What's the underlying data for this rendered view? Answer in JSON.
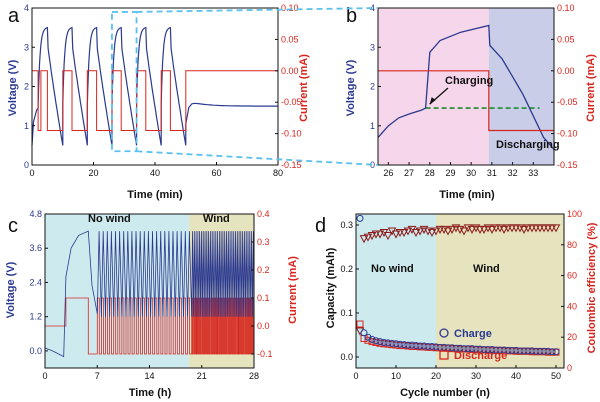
{
  "colors": {
    "voltage": "#2b3990",
    "current": "#d7261e",
    "zoom": "#5bc0eb",
    "charging_bg": "#f6d6ea",
    "discharging_bg": "#c9cde8",
    "nowind_bg": "#cdebee",
    "wind_bg": "#e6e4bf",
    "dashed": "#1e8c32"
  },
  "chart_data": [
    {
      "panel": "a",
      "type": "line",
      "xlabel": "Time (min)",
      "ylabel": "Voltage (V)",
      "y2label": "Current (mA)",
      "xlim": [
        0,
        80
      ],
      "ylim": [
        0,
        4
      ],
      "y2lim": [
        -0.15,
        0.1
      ],
      "xticks": [
        0,
        20,
        40,
        60,
        80
      ],
      "yticks": [
        0,
        1,
        2,
        3,
        4
      ],
      "y2ticks": [
        "0.10",
        "0.05",
        "0.00",
        "-0.05",
        "-0.10",
        "-0.15"
      ],
      "y2tick_values": [
        0.1,
        0.05,
        0.0,
        -0.05,
        -0.1,
        -0.15
      ],
      "series": [
        {
          "axis": "left",
          "values_note": "",
          "cycle_period_min": 8,
          "cycle_count": 6,
          "peak_v": 3.5,
          "min_v": 0.5,
          "rest_v": 1.5
        },
        {
          "axis": "right",
          "high": 0.0,
          "low": -0.095
        }
      ]
    },
    {
      "panel": "b",
      "type": "line",
      "xlabel": "Time (min)",
      "ylabel": "Voltage (V)",
      "y2label": "Current (mA)",
      "xlim": [
        25.5,
        34
      ],
      "ylim": [
        0,
        4
      ],
      "y2lim": [
        -0.15,
        0.1
      ],
      "xticks": [
        26,
        27,
        28,
        29,
        30,
        31,
        32,
        33
      ],
      "yticks": [
        0,
        1,
        2,
        3,
        4
      ],
      "y2ticks": [
        "0.10",
        "0.05",
        "0.00",
        "-0.05",
        "-0.10",
        "-0.15"
      ],
      "y2tick_values": [
        0.1,
        0.05,
        0.0,
        -0.05,
        -0.1,
        -0.15
      ],
      "annotations": [
        "Charging",
        "Discharging"
      ],
      "charging_region": [
        25.5,
        30.85
      ],
      "discharging_region": [
        30.85,
        34
      ],
      "voltage_points": [
        [
          25.5,
          0.7
        ],
        [
          26,
          1.0
        ],
        [
          26.5,
          1.2
        ],
        [
          27,
          1.3
        ],
        [
          27.6,
          1.4
        ],
        [
          27.8,
          1.45
        ],
        [
          28.0,
          2.9
        ],
        [
          28.5,
          3.2
        ],
        [
          29.5,
          3.4
        ],
        [
          30.85,
          3.55
        ],
        [
          30.9,
          3.05
        ],
        [
          31.5,
          2.7
        ],
        [
          32.5,
          1.8
        ],
        [
          33.5,
          0.7
        ],
        [
          34,
          0.4
        ]
      ],
      "current_points": [
        [
          25.5,
          0.0
        ],
        [
          30.85,
          0.0
        ],
        [
          30.85,
          -0.095
        ],
        [
          34,
          -0.095
        ]
      ],
      "dashed_level_v": 1.45
    },
    {
      "panel": "c",
      "type": "line",
      "xlabel": "Time (h)",
      "ylabel": "Voltage (V)",
      "y2label": "Current (mA)",
      "xlim": [
        0,
        28
      ],
      "ylim": [
        -0.6,
        4.8
      ],
      "y2lim": [
        -0.15,
        0.4
      ],
      "xticks": [
        0,
        7,
        14,
        21,
        28
      ],
      "yticks": [
        "0.0",
        "1.2",
        "2.4",
        "3.6",
        "4.8"
      ],
      "ytick_values": [
        0.0,
        1.2,
        2.4,
        3.6,
        4.8
      ],
      "y2ticks": [
        "-0.1",
        "0.0",
        "0.1",
        "0.2",
        "0.3",
        "0.4"
      ],
      "y2tick_values": [
        -0.1,
        0.0,
        0.1,
        0.2,
        0.3,
        0.4
      ],
      "regions": [
        {
          "label": "No wind",
          "from": 0,
          "to": 19.3
        },
        {
          "label": "Wind",
          "from": 19.3,
          "to": 28
        }
      ],
      "voltage_high": 4.2,
      "voltage_low": 1.1
    },
    {
      "panel": "d",
      "type": "scatter",
      "xlabel": "Cycle number (n)",
      "ylabel": "Capacity (mAh)",
      "y2label": "Coulombic efficiency (%)",
      "xlim": [
        0,
        52
      ],
      "ylim": [
        -0.025,
        0.325
      ],
      "y2lim": [
        0,
        100
      ],
      "xticks": [
        0,
        10,
        20,
        30,
        40,
        50
      ],
      "yticks": [
        "0.0",
        "0.1",
        "0.2",
        "0.3"
      ],
      "ytick_values": [
        0.0,
        0.1,
        0.2,
        0.3
      ],
      "y2ticks": [
        0,
        20,
        40,
        60,
        80,
        100
      ],
      "regions": [
        {
          "label": "No wind",
          "from": 0,
          "to": 20
        },
        {
          "label": "Wind",
          "from": 20,
          "to": 52
        }
      ],
      "series": [
        {
          "name": "Charge",
          "marker": "circle",
          "x": [
            1,
            2,
            3,
            4,
            5,
            6,
            7,
            8,
            9,
            10,
            11,
            12,
            13,
            14,
            15,
            16,
            17,
            18,
            19,
            20,
            21,
            22,
            23,
            24,
            25,
            26,
            27,
            28,
            29,
            30,
            31,
            32,
            33,
            34,
            35,
            36,
            37,
            38,
            39,
            40,
            41,
            42,
            43,
            44,
            45,
            46,
            47,
            48,
            49,
            50
          ],
          "values": [
            0.315,
            0.055,
            0.045,
            0.04,
            0.037,
            0.035,
            0.033,
            0.032,
            0.031,
            0.03,
            0.029,
            0.028,
            0.027,
            0.027,
            0.026,
            0.025,
            0.025,
            0.024,
            0.024,
            0.023,
            0.022,
            0.022,
            0.021,
            0.021,
            0.02,
            0.02,
            0.019,
            0.019,
            0.019,
            0.018,
            0.018,
            0.017,
            0.017,
            0.017,
            0.016,
            0.016,
            0.016,
            0.015,
            0.015,
            0.015,
            0.014,
            0.014,
            0.014,
            0.014,
            0.013,
            0.013,
            0.013,
            0.013,
            0.012,
            0.012
          ]
        },
        {
          "name": "Discharge",
          "marker": "square",
          "x": [
            1,
            2,
            3,
            4,
            5,
            6,
            7,
            8,
            9,
            10,
            11,
            12,
            13,
            14,
            15,
            16,
            17,
            18,
            19,
            20,
            21,
            22,
            23,
            24,
            25,
            26,
            27,
            28,
            29,
            30,
            31,
            32,
            33,
            34,
            35,
            36,
            37,
            38,
            39,
            40,
            41,
            42,
            43,
            44,
            45,
            46,
            47,
            48,
            49,
            50
          ],
          "values": [
            0.075,
            0.042,
            0.038,
            0.035,
            0.033,
            0.031,
            0.03,
            0.029,
            0.028,
            0.027,
            0.026,
            0.026,
            0.025,
            0.024,
            0.024,
            0.023,
            0.023,
            0.022,
            0.022,
            0.021,
            0.021,
            0.02,
            0.02,
            0.019,
            0.019,
            0.018,
            0.018,
            0.018,
            0.017,
            0.017,
            0.016,
            0.016,
            0.016,
            0.015,
            0.015,
            0.015,
            0.014,
            0.014,
            0.014,
            0.013,
            0.013,
            0.013,
            0.013,
            0.012,
            0.012,
            0.012,
            0.012,
            0.011,
            0.011,
            0.011
          ]
        },
        {
          "name": "",
          "axis": "right",
          "marker": "triangle-down",
          "x": [
            1,
            2,
            3,
            4,
            5,
            6,
            7,
            8,
            9,
            10,
            11,
            12,
            13,
            14,
            15,
            16,
            17,
            18,
            19,
            20,
            21,
            22,
            23,
            24,
            25,
            26,
            27,
            28,
            29,
            30,
            31,
            32,
            33,
            34,
            35,
            36,
            37,
            38,
            39,
            40,
            41,
            42,
            43,
            44,
            45,
            46,
            47,
            48,
            49,
            50
          ],
          "values": [
            24,
            84,
            85,
            86,
            87,
            87,
            88,
            86,
            89,
            87,
            88,
            88,
            89,
            90,
            88,
            89,
            90,
            89,
            88,
            89,
            90,
            90,
            89,
            90,
            91,
            90,
            89,
            91,
            90,
            91,
            90,
            90,
            91,
            90,
            91,
            91,
            90,
            91,
            91,
            91,
            91,
            90,
            91,
            91,
            91,
            91,
            91,
            91,
            91,
            91
          ]
        }
      ]
    }
  ],
  "labels": {
    "a": "a",
    "b": "b",
    "c": "c",
    "d": "d",
    "charging": "Charging",
    "discharging": "Discharging",
    "nowind": "No wind",
    "wind": "Wind",
    "charge": "Charge",
    "discharge": "Discharge",
    "a_x": "Time (min)",
    "a_y": "Voltage (V)",
    "a_y2": "Current (mA)",
    "b_x": "Time (min)",
    "b_y": "Voltage (V)",
    "b_y2": "Current (mA)",
    "c_x": "Time (h)",
    "c_y": "Voltage (V)",
    "c_y2": "Current (mA)",
    "d_x": "Cycle number (n)",
    "d_y": "Capacity (mAh)",
    "d_y2": "Coulombic efficiency (%)"
  }
}
